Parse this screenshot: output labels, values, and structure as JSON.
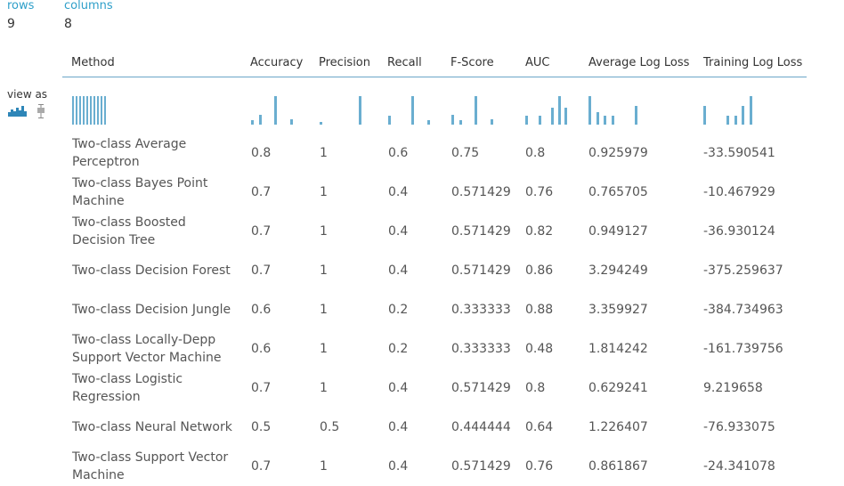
{
  "stats": {
    "rows_label": "rows",
    "rows_value": "9",
    "columns_label": "columns",
    "columns_value": "8"
  },
  "view_as": {
    "label": "view as",
    "icons": [
      "histogram-icon",
      "boxplot-icon"
    ]
  },
  "colors": {
    "accent": "#2e9fc9",
    "bar": "#6aaed0",
    "text": "#555555"
  },
  "columns": [
    "Method",
    "Accuracy",
    "Precision",
    "Recall",
    "F-Score",
    "AUC",
    "Average Log Loss",
    "Training Log Loss"
  ],
  "histograms": [
    [
      1,
      1,
      1,
      1,
      1,
      1,
      1,
      1,
      1,
      1
    ],
    [
      0.15,
      0.35,
      0,
      1,
      0,
      0.2
    ],
    [
      0.1,
      0,
      0,
      0,
      0,
      1
    ],
    [
      0.3,
      0,
      0,
      1,
      0,
      0.15
    ],
    [
      0.35,
      0.15,
      0,
      1,
      0,
      0.2
    ],
    [
      0.3,
      0,
      0.3,
      0,
      0.6,
      1,
      0.6
    ],
    [
      1,
      0.45,
      0.3,
      0.3,
      0,
      0,
      0.65
    ],
    [
      0.65,
      0,
      0,
      0.3,
      0.3,
      0.65,
      1
    ]
  ],
  "rows": [
    [
      "Two-class Average Perceptron",
      "0.8",
      "1",
      "0.6",
      "0.75",
      "0.8",
      "0.925979",
      "-33.590541"
    ],
    [
      "Two-class Bayes Point Machine",
      "0.7",
      "1",
      "0.4",
      "0.571429",
      "0.76",
      "0.765705",
      "-10.467929"
    ],
    [
      "Two-class Boosted Decision Tree",
      "0.7",
      "1",
      "0.4",
      "0.571429",
      "0.82",
      "0.949127",
      "-36.930124"
    ],
    [
      "Two-class Decision Forest",
      "0.7",
      "1",
      "0.4",
      "0.571429",
      "0.86",
      "3.294249",
      "-375.259637"
    ],
    [
      "Two-class Decision Jungle",
      "0.6",
      "1",
      "0.2",
      "0.333333",
      "0.88",
      "3.359927",
      "-384.734963"
    ],
    [
      "Two-class Locally-Depp Support Vector Machine",
      "0.6",
      "1",
      "0.2",
      "0.333333",
      "0.48",
      "1.814242",
      "-161.739756"
    ],
    [
      "Two-class Logistic Regression",
      "0.7",
      "1",
      "0.4",
      "0.571429",
      "0.8",
      "0.629241",
      "9.219658"
    ],
    [
      "Two-class Neural Network",
      "0.5",
      "0.5",
      "0.4",
      "0.444444",
      "0.64",
      "1.226407",
      "-76.933075"
    ],
    [
      "Two-class Support Vector Machine",
      "0.7",
      "1",
      "0.4",
      "0.571429",
      "0.76",
      "0.861867",
      "-24.341078"
    ]
  ]
}
